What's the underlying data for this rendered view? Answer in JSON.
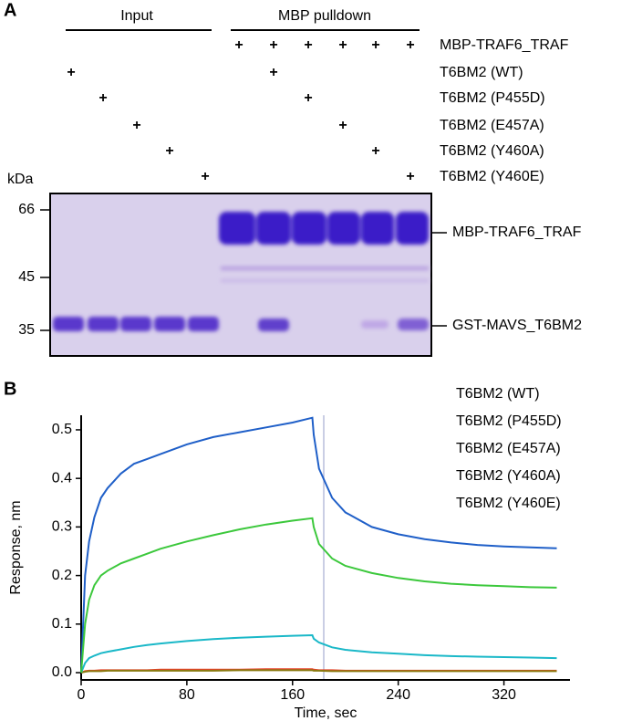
{
  "panel_a": {
    "label": "A",
    "groups": [
      "Input",
      "MBP pulldown"
    ],
    "rows": [
      {
        "name": "MBP-TRAF6_TRAF",
        "cells": [
          null,
          null,
          null,
          null,
          null,
          "+",
          "+",
          "+",
          "+",
          "+",
          "+"
        ]
      },
      {
        "name": "T6BM2 (WT)",
        "cells": [
          "+",
          null,
          null,
          null,
          null,
          null,
          "+",
          null,
          null,
          null,
          null
        ]
      },
      {
        "name": "T6BM2 (P455D)",
        "cells": [
          null,
          "+",
          null,
          null,
          null,
          null,
          null,
          "+",
          null,
          null,
          null
        ]
      },
      {
        "name": "T6BM2 (E457A)",
        "cells": [
          null,
          null,
          "+",
          null,
          null,
          null,
          null,
          null,
          "+",
          null,
          null
        ]
      },
      {
        "name": "T6BM2 (Y460A)",
        "cells": [
          null,
          null,
          null,
          "+",
          null,
          null,
          null,
          null,
          null,
          "+",
          null
        ]
      },
      {
        "name": "T6BM2 (Y460E)",
        "cells": [
          null,
          null,
          null,
          null,
          "+",
          null,
          null,
          null,
          null,
          null,
          "+"
        ]
      }
    ],
    "kda": "kDa",
    "markers": [
      66,
      45,
      35
    ],
    "bands": [
      "MBP-TRAF6_TRAF",
      "GST-MAVS_T6BM2"
    ]
  },
  "panel_b_label": "B",
  "chart_data": {
    "type": "line",
    "xlabel": "Time, sec",
    "ylabel": "Response, nm",
    "x": [
      0,
      3,
      6,
      10,
      15,
      20,
      30,
      40,
      50,
      60,
      80,
      100,
      120,
      140,
      160,
      175,
      176,
      180,
      190,
      200,
      220,
      240,
      260,
      280,
      300,
      320,
      340,
      360
    ],
    "series": [
      {
        "name": "T6BM2 (WT)",
        "color": "#1f5fc8",
        "values": [
          0,
          0.2,
          0.27,
          0.32,
          0.36,
          0.38,
          0.41,
          0.43,
          0.44,
          0.45,
          0.47,
          0.485,
          0.495,
          0.505,
          0.515,
          0.525,
          0.49,
          0.42,
          0.36,
          0.33,
          0.3,
          0.285,
          0.275,
          0.268,
          0.263,
          0.26,
          0.258,
          0.256
        ]
      },
      {
        "name": "T6BM2 (P455D)",
        "color": "#e8402a",
        "values": [
          0,
          0.003,
          0.004,
          0.004,
          0.005,
          0.005,
          0.005,
          0.005,
          0.005,
          0.006,
          0.006,
          0.006,
          0.006,
          0.007,
          0.007,
          0.007,
          0.006,
          0.005,
          0.005,
          0.004,
          0.004,
          0.004,
          0.004,
          0.004,
          0.004,
          0.004,
          0.004,
          0.004
        ]
      },
      {
        "name": "T6BM2 (E457A)",
        "color": "#8a7a10",
        "values": [
          0,
          0.002,
          0.003,
          0.003,
          0.003,
          0.004,
          0.004,
          0.004,
          0.004,
          0.004,
          0.004,
          0.004,
          0.005,
          0.005,
          0.005,
          0.005,
          0.004,
          0.004,
          0.003,
          0.003,
          0.003,
          0.003,
          0.003,
          0.003,
          0.003,
          0.003,
          0.003,
          0.003
        ]
      },
      {
        "name": "T6BM2 (Y460A)",
        "color": "#1ab8c8",
        "values": [
          0,
          0.02,
          0.03,
          0.035,
          0.04,
          0.043,
          0.048,
          0.053,
          0.057,
          0.06,
          0.065,
          0.069,
          0.072,
          0.074,
          0.076,
          0.077,
          0.07,
          0.062,
          0.052,
          0.047,
          0.042,
          0.039,
          0.036,
          0.034,
          0.033,
          0.032,
          0.031,
          0.03
        ]
      },
      {
        "name": "T6BM2 (Y460E)",
        "color": "#3cc83c",
        "values": [
          0,
          0.1,
          0.15,
          0.18,
          0.2,
          0.21,
          0.225,
          0.235,
          0.245,
          0.255,
          0.27,
          0.283,
          0.295,
          0.305,
          0.313,
          0.318,
          0.3,
          0.265,
          0.235,
          0.22,
          0.205,
          0.195,
          0.188,
          0.183,
          0.18,
          0.178,
          0.176,
          0.175
        ]
      }
    ],
    "xlim": [
      0,
      370
    ],
    "ylim": [
      -0.015,
      0.53
    ],
    "xticks": [
      0,
      80,
      160,
      240,
      320
    ],
    "yticks": [
      {
        "value": 0,
        "label": "0.0"
      },
      0.1,
      0.2,
      0.3,
      0.4,
      0.5
    ],
    "legend": "upper right"
  }
}
